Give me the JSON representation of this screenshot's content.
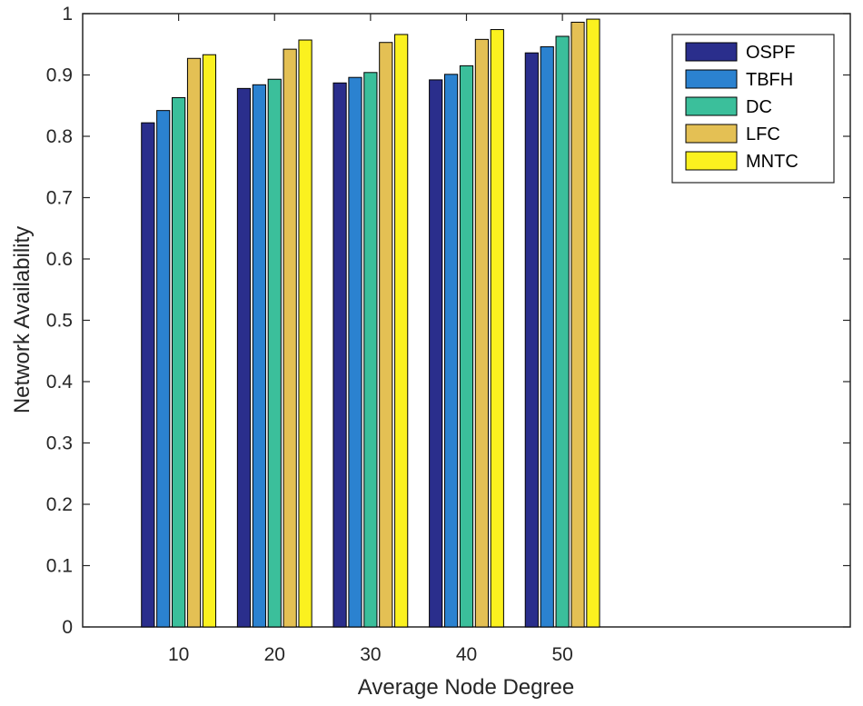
{
  "chart_data": {
    "type": "bar",
    "title": "",
    "xlabel": "Average Node Degree",
    "ylabel": "Network Availability",
    "categories": [
      "10",
      "20",
      "30",
      "40",
      "50"
    ],
    "ylim": [
      0,
      1
    ],
    "yticks": [
      "0",
      "0.1",
      "0.2",
      "0.3",
      "0.4",
      "0.5",
      "0.6",
      "0.7",
      "0.8",
      "0.9",
      "1"
    ],
    "grid": false,
    "legend_position": "top-right",
    "series": [
      {
        "name": "OSPF",
        "color": "#2a2e8c",
        "values": [
          0.822,
          0.878,
          0.887,
          0.892,
          0.936
        ]
      },
      {
        "name": "TBFH",
        "color": "#2b82d0",
        "values": [
          0.842,
          0.884,
          0.896,
          0.901,
          0.946
        ]
      },
      {
        "name": "DC",
        "color": "#3bbf9b",
        "values": [
          0.863,
          0.893,
          0.904,
          0.915,
          0.963
        ]
      },
      {
        "name": "LFC",
        "color": "#e4c054",
        "values": [
          0.927,
          0.942,
          0.953,
          0.958,
          0.986
        ]
      },
      {
        "name": "MNTC",
        "color": "#fbf11f",
        "values": [
          0.933,
          0.957,
          0.966,
          0.974,
          0.991
        ]
      }
    ]
  }
}
